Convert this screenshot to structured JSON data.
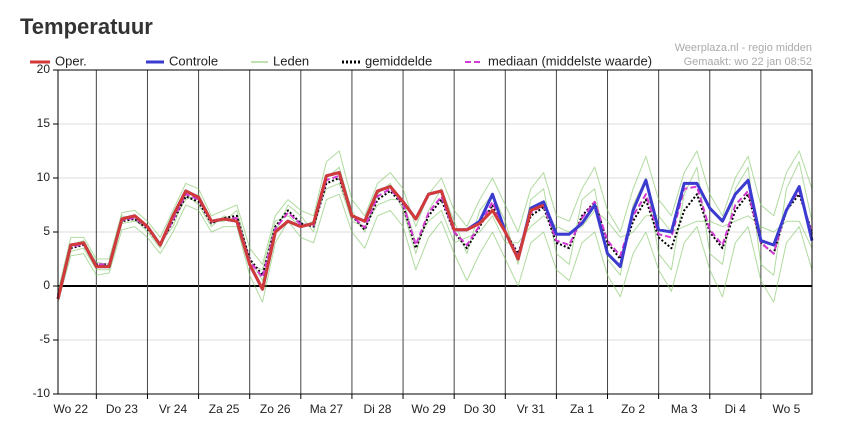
{
  "chart_data": {
    "type": "line",
    "title": "Temperatuur",
    "source": "Weerplaza.nl - regio midden",
    "created": "Gemaakt: wo 22 jan 08:52",
    "x": [
      0,
      6,
      12,
      18,
      24,
      30,
      36,
      42,
      48,
      54,
      60,
      66,
      72,
      78,
      84,
      90,
      96,
      102,
      108,
      114,
      120,
      126,
      132,
      138,
      144,
      150,
      156,
      162,
      168,
      174,
      180,
      186,
      192,
      198,
      204,
      210,
      216,
      222,
      228,
      234,
      240,
      246,
      252,
      258,
      264,
      270,
      276,
      282,
      288,
      294,
      300,
      306,
      312,
      318,
      324,
      330,
      336,
      342,
      348,
      354
    ],
    "xlim": [
      0,
      354
    ],
    "xticks": [
      {
        "value": 6,
        "label": "Wo 22"
      },
      {
        "value": 30,
        "label": "Do 23"
      },
      {
        "value": 54,
        "label": "Vr 24"
      },
      {
        "value": 78,
        "label": "Za 25"
      },
      {
        "value": 102,
        "label": "Zo 26"
      },
      {
        "value": 126,
        "label": "Ma 27"
      },
      {
        "value": 150,
        "label": "Di 28"
      },
      {
        "value": 174,
        "label": "Wo 29"
      },
      {
        "value": 198,
        "label": "Do 30"
      },
      {
        "value": 222,
        "label": "Vr 31"
      },
      {
        "value": 246,
        "label": "Za 1"
      },
      {
        "value": 270,
        "label": "Zo 2"
      },
      {
        "value": 294,
        "label": "Ma 3"
      },
      {
        "value": 318,
        "label": "Di 4"
      },
      {
        "value": 342,
        "label": "Wo 5"
      }
    ],
    "xgrid": [
      18,
      42,
      66,
      90,
      114,
      138,
      162,
      186,
      210,
      234,
      258,
      282,
      306,
      330
    ],
    "ylim": [
      -10,
      20
    ],
    "yticks": [
      -10,
      -5,
      0,
      5,
      10,
      15,
      20
    ],
    "grid": true,
    "members": {
      "name": "Leden",
      "color": "#7cc35f",
      "series": [
        [
          -0.5,
          4.5,
          4.5,
          2.5,
          2.5,
          6.8,
          7.0,
          6.0,
          4.5,
          7.0,
          9.5,
          9.0,
          6.5,
          7.0,
          7.5,
          3.5,
          2.0,
          6.5,
          8.0,
          7.0,
          6.5,
          11.5,
          12.5,
          8.0,
          6.5,
          9.5,
          10.5,
          9.0,
          5.5,
          8.5,
          10.0,
          7.0,
          5.5,
          8.0,
          10.0,
          7.5,
          5.0,
          9.0,
          10.5,
          6.5,
          6.0,
          9.0,
          11.0,
          7.0,
          5.0,
          9.0,
          12.0,
          8.0,
          6.5,
          10.5,
          12.5,
          8.5,
          6.5,
          10.0,
          12.0,
          7.5,
          6.5,
          10.5,
          12.5,
          9.0
        ],
        [
          -1.5,
          2.8,
          3.0,
          1.0,
          1.2,
          5.2,
          5.5,
          4.5,
          3.0,
          5.0,
          7.5,
          7.0,
          5.0,
          5.5,
          5.5,
          1.0,
          -1.5,
          4.0,
          6.0,
          4.5,
          4.0,
          8.0,
          8.5,
          5.0,
          3.5,
          6.5,
          7.0,
          5.5,
          1.5,
          4.5,
          6.0,
          3.0,
          0.5,
          3.0,
          5.0,
          2.5,
          0.0,
          4.0,
          5.0,
          1.5,
          0.5,
          4.0,
          5.0,
          1.0,
          -1.0,
          3.0,
          5.0,
          1.5,
          -0.5,
          4.0,
          5.5,
          1.5,
          -1.0,
          4.0,
          5.5,
          0.5,
          -1.5,
          4.0,
          5.5,
          1.5
        ],
        [
          -0.8,
          3.8,
          4.2,
          2.2,
          2.0,
          6.5,
          6.2,
          5.0,
          3.5,
          6.2,
          8.0,
          8.5,
          6.0,
          6.0,
          7.0,
          2.5,
          0.5,
          5.0,
          7.5,
          6.5,
          5.0,
          10.0,
          11.0,
          7.0,
          5.0,
          8.5,
          9.5,
          7.0,
          3.0,
          7.0,
          9.0,
          6.0,
          3.0,
          7.0,
          8.5,
          6.0,
          2.0,
          8.0,
          9.0,
          3.0,
          2.0,
          8.0,
          9.0,
          2.5,
          1.0,
          7.5,
          10.0,
          3.0,
          1.5,
          8.5,
          11.0,
          3.0,
          2.0,
          9.0,
          11.0,
          2.0,
          1.0,
          9.0,
          11.5,
          6.0
        ],
        [
          -1.0,
          3.2,
          3.5,
          1.5,
          1.5,
          5.8,
          6.0,
          5.5,
          4.0,
          5.5,
          8.5,
          7.5,
          5.5,
          6.5,
          6.0,
          2.0,
          1.5,
          6.0,
          6.5,
          5.5,
          6.0,
          9.0,
          9.5,
          6.0,
          5.5,
          7.5,
          8.0,
          8.0,
          4.0,
          6.0,
          7.0,
          4.0,
          4.5,
          5.0,
          6.5,
          4.0,
          4.0,
          5.5,
          6.5,
          5.5,
          5.0,
          5.5,
          7.0,
          6.0,
          4.5,
          5.0,
          6.5,
          6.5,
          5.0,
          5.5,
          6.0,
          6.0,
          5.5,
          6.0,
          6.5,
          5.5,
          5.0,
          6.0,
          6.0,
          3.5
        ]
      ]
    },
    "series": [
      {
        "name": "Oper.",
        "color": "#d23a3a",
        "style": "solid",
        "values": [
          -1.2,
          3.8,
          4.0,
          1.8,
          1.8,
          6.2,
          6.5,
          5.5,
          3.8,
          6.5,
          8.8,
          8.2,
          6.0,
          6.2,
          6.0,
          2.0,
          -0.3,
          5.0,
          6.0,
          5.5,
          5.8,
          10.2,
          10.5,
          6.5,
          6.0,
          8.8,
          9.2,
          7.8,
          6.2,
          8.5,
          8.8,
          5.2,
          5.2,
          5.8,
          7.0,
          5.0,
          2.5,
          7.0,
          7.5,
          null,
          null,
          null,
          null,
          null,
          null,
          null,
          null,
          null,
          null,
          null,
          null,
          null,
          null,
          null,
          null,
          null,
          null,
          null,
          null,
          null
        ]
      },
      {
        "name": "Controle",
        "color": "#3b3bcf",
        "style": "solid",
        "values": [
          -1.2,
          3.8,
          4.0,
          1.8,
          1.8,
          6.2,
          6.5,
          5.5,
          3.8,
          6.5,
          8.8,
          8.2,
          6.0,
          6.2,
          6.0,
          2.0,
          -0.3,
          5.0,
          6.0,
          5.5,
          5.8,
          10.2,
          10.5,
          6.5,
          6.0,
          8.8,
          9.2,
          7.8,
          6.2,
          8.5,
          8.8,
          5.2,
          5.2,
          6.0,
          8.5,
          5.0,
          2.5,
          7.2,
          7.8,
          4.8,
          4.8,
          5.8,
          7.5,
          3.0,
          1.8,
          7.0,
          9.8,
          5.2,
          5.0,
          9.5,
          9.5,
          7.2,
          6.0,
          8.5,
          9.8,
          4.2,
          3.8,
          7.0,
          9.2,
          4.2
        ]
      },
      {
        "name": "gemiddelde",
        "color": "#000000",
        "style": "dotted",
        "values": [
          -0.8,
          3.5,
          3.8,
          2.0,
          2.0,
          6.0,
          6.2,
          5.3,
          3.8,
          6.0,
          8.3,
          7.8,
          5.8,
          6.3,
          6.5,
          2.5,
          1.0,
          5.5,
          7.0,
          5.8,
          5.5,
          9.5,
          10.0,
          6.5,
          5.2,
          8.0,
          8.8,
          7.5,
          3.5,
          6.5,
          8.0,
          5.0,
          3.5,
          5.5,
          7.5,
          5.0,
          3.0,
          6.5,
          7.3,
          4.0,
          3.5,
          6.5,
          7.8,
          4.0,
          2.5,
          6.0,
          8.0,
          4.5,
          3.5,
          7.0,
          8.5,
          5.0,
          3.5,
          7.0,
          8.5,
          4.0,
          3.0,
          7.0,
          8.5,
          5.0
        ]
      },
      {
        "name": "mediaan (middelste waarde)",
        "color": "#d23ad2",
        "style": "dashed",
        "values": [
          -0.9,
          3.6,
          3.9,
          2.0,
          2.0,
          6.1,
          6.3,
          5.4,
          3.8,
          6.1,
          8.5,
          8.0,
          5.9,
          6.2,
          6.3,
          2.3,
          0.8,
          5.3,
          6.8,
          5.7,
          5.6,
          9.8,
          10.2,
          6.5,
          5.4,
          8.3,
          9.0,
          7.6,
          3.8,
          6.8,
          8.3,
          5.0,
          3.8,
          5.6,
          7.8,
          5.0,
          2.8,
          6.8,
          7.5,
          4.2,
          3.8,
          6.3,
          7.8,
          4.2,
          2.8,
          6.5,
          8.5,
          4.8,
          4.5,
          9.0,
          9.2,
          5.2,
          3.8,
          7.5,
          8.8,
          4.0,
          3.0,
          7.2,
          8.8,
          4.8
        ]
      }
    ]
  }
}
